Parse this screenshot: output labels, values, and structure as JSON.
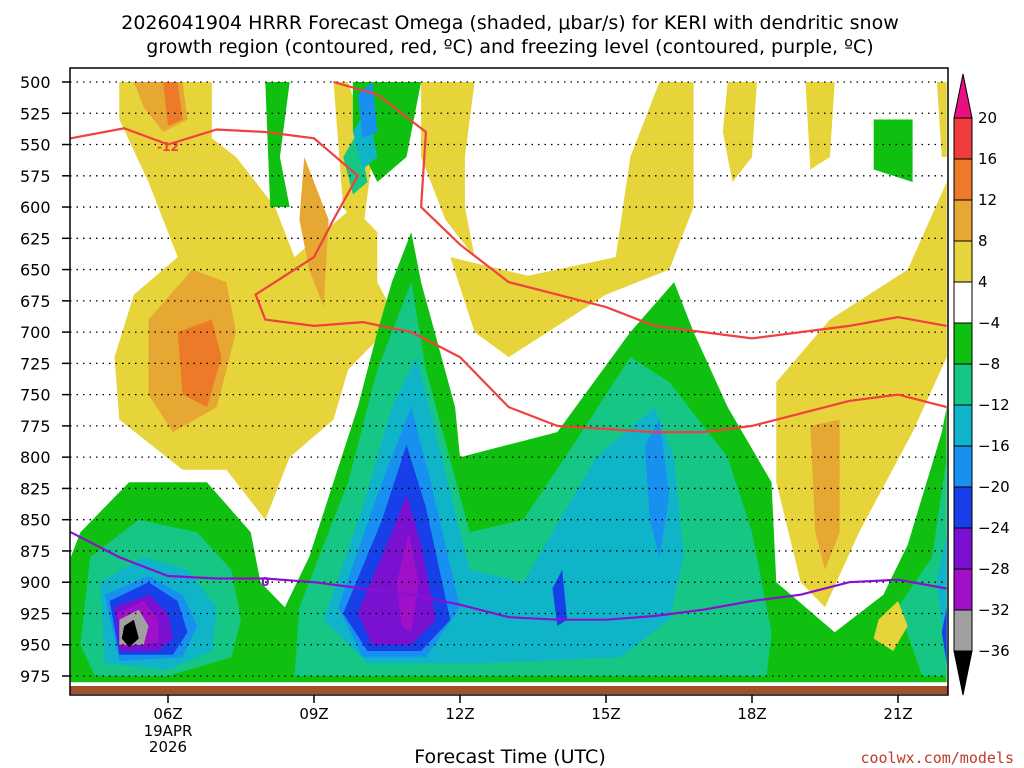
{
  "chart_data": {
    "type": "heatmap",
    "title_lines": [
      "2026041904 HRRR Forecast Omega (shaded, μbar/s) for KERI with dendritic snow",
      "growth region (contoured, red, ºC) and freezing level (contoured, purple, ºC)"
    ],
    "xlabel": "Forecast Time (UTC)",
    "ylabel": "",
    "y_ticks": [
      "500",
      "525",
      "550",
      "575",
      "600",
      "625",
      "650",
      "675",
      "700",
      "725",
      "750",
      "775",
      "800",
      "825",
      "850",
      "875",
      "900",
      "925",
      "950",
      "975"
    ],
    "x_ticks": [
      {
        "hour": 6,
        "label": "06Z",
        "sub": [
          "19APR",
          "2026"
        ]
      },
      {
        "hour": 9,
        "label": "09Z",
        "sub": []
      },
      {
        "hour": 12,
        "label": "12Z",
        "sub": []
      },
      {
        "hour": 15,
        "label": "15Z",
        "sub": []
      },
      {
        "hour": 18,
        "label": "18Z",
        "sub": []
      },
      {
        "hour": 21,
        "label": "21Z",
        "sub": []
      }
    ],
    "x_range_hours": [
      4,
      22
    ],
    "y_range_hpa": [
      500,
      975
    ],
    "grid": true,
    "colorbar": {
      "levels": [
        20,
        16,
        12,
        8,
        4,
        -4,
        -8,
        -12,
        -16,
        -20,
        -24,
        -28,
        -32,
        -36
      ],
      "colors": [
        "#e8107e",
        "#f03c3c",
        "#ec7a28",
        "#e6a833",
        "#e6d43a",
        "#ffffff",
        "#10c010",
        "#16c685",
        "#10b4c8",
        "#1890f0",
        "#1840e8",
        "#7a10d0",
        "#a010c8",
        "#a0a0a0",
        "#000000"
      ]
    },
    "contours": [
      {
        "name": "-12",
        "color": "#f04040",
        "label": "-12"
      },
      {
        "name": "0",
        "color": "#8a10d0",
        "label": "0"
      }
    ],
    "shaded_regions": [
      {
        "value": 4,
        "color": "#e6d43a"
      },
      {
        "value": 8,
        "color": "#e6a833"
      },
      {
        "value": 12,
        "color": "#ec7a28"
      },
      {
        "value": -4,
        "color": "#10c010"
      },
      {
        "value": -8,
        "color": "#16c685"
      },
      {
        "value": -12,
        "color": "#10b4c8"
      },
      {
        "value": -16,
        "color": "#1890f0"
      },
      {
        "value": -20,
        "color": "#1840e8"
      },
      {
        "value": -24,
        "color": "#7a10d0"
      },
      {
        "value": -28,
        "color": "#a010c8"
      },
      {
        "value": -32,
        "color": "#a0a0a0"
      },
      {
        "value": -36,
        "color": "#000000"
      }
    ],
    "terrain_color": "#a0522d"
  },
  "credit": "coolwx.com/models"
}
